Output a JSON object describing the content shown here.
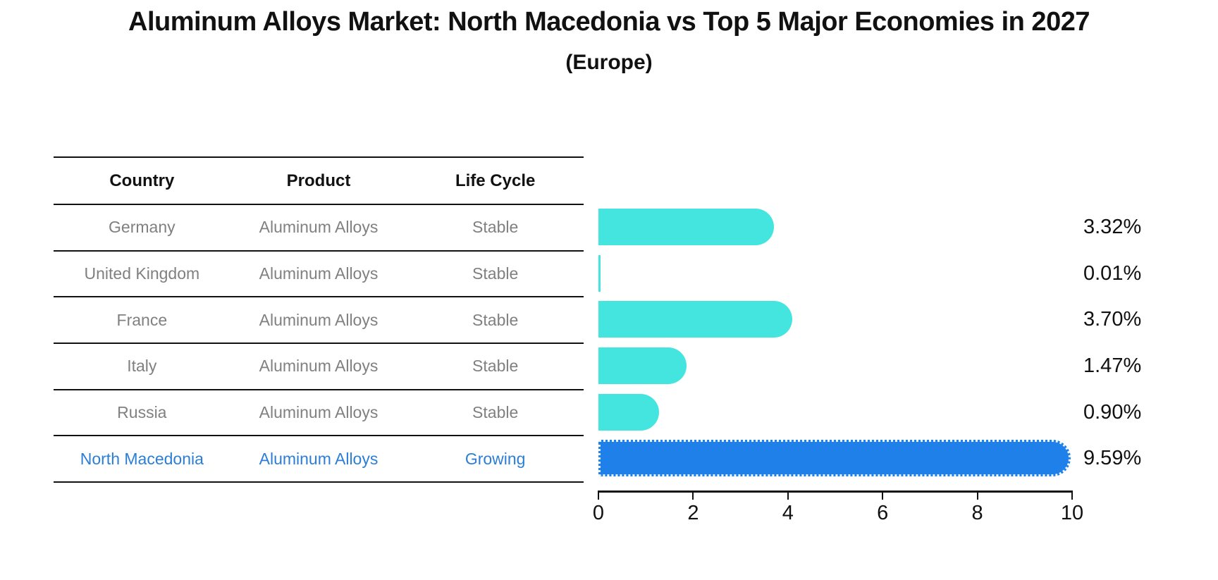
{
  "title": "Aluminum Alloys Market: North Macedonia vs Top 5 Major Economies in 2027",
  "subtitle": "(Europe)",
  "table": {
    "headers": [
      "Country",
      "Product",
      "Life Cycle"
    ],
    "rows": [
      {
        "country": "Germany",
        "product": "Aluminum Alloys",
        "life_cycle": "Stable",
        "highlighted": false
      },
      {
        "country": "United Kingdom",
        "product": "Aluminum Alloys",
        "life_cycle": "Stable",
        "highlighted": false
      },
      {
        "country": "France",
        "product": "Aluminum Alloys",
        "life_cycle": "Stable",
        "highlighted": false
      },
      {
        "country": "Italy",
        "product": "Aluminum Alloys",
        "life_cycle": "Stable",
        "highlighted": false
      },
      {
        "country": "Russia",
        "product": "Aluminum Alloys",
        "life_cycle": "Stable",
        "highlighted": false
      },
      {
        "country": "North Macedonia",
        "product": "Aluminum Alloys",
        "life_cycle": "Growing",
        "highlighted": true
      }
    ]
  },
  "chart_data": {
    "type": "bar",
    "orientation": "horizontal",
    "title": "Aluminum Alloys Market: North Macedonia vs Top 5 Major Economies in 2027",
    "subtitle": "(Europe)",
    "categories": [
      "Germany",
      "United Kingdom",
      "France",
      "Italy",
      "Russia",
      "North Macedonia"
    ],
    "values": [
      3.32,
      0.01,
      3.7,
      1.47,
      0.9,
      9.59
    ],
    "value_labels": [
      "3.32%",
      "0.01%",
      "3.70%",
      "1.47%",
      "0.90%",
      "9.59%"
    ],
    "xlabel": "",
    "ylabel": "",
    "xlim": [
      0,
      10
    ],
    "x_ticks": [
      "0",
      "2",
      "4",
      "6",
      "8",
      "10"
    ],
    "grid": false,
    "legend": "none",
    "highlight_index": 5
  },
  "colors": {
    "bar_default": "#43e5de",
    "bar_highlight": "#1e80e8",
    "highlight_text": "#2b7ed6",
    "table_text": "#808080",
    "axis_text": "#111111"
  }
}
